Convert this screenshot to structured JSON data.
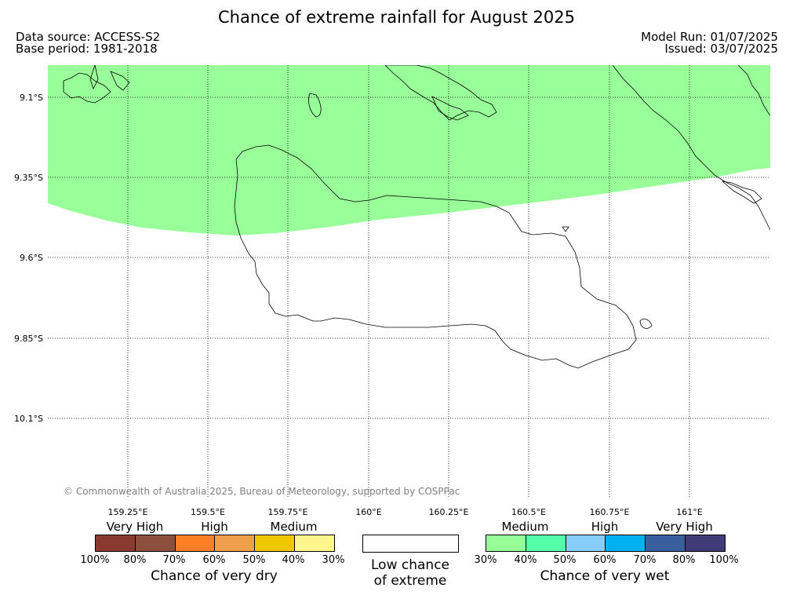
{
  "title": "Chance of extreme rainfall for August 2025",
  "meta": {
    "data_source": "Data source: ACCESS-S2",
    "base_period": "Base period: 1981-2018",
    "model_run": "Model Run: 01/07/2025",
    "issued": "Issued: 03/07/2025"
  },
  "map": {
    "lat_labels": [
      "9.1°S",
      "9.35°S",
      "9.6°S",
      "9.85°S",
      "10.1°S"
    ],
    "lon_labels": [
      "159.25°E",
      "159.5°E",
      "159.75°E",
      "160°E",
      "160.25°E",
      "160.5°E",
      "160.75°E",
      "161°E"
    ],
    "copyright": "© Commonwealth of Australia 2025, Bureau of Meteorology, supported by COSPPac",
    "shaded_category_color": "#99ff99"
  },
  "legend": {
    "dry": {
      "categories": [
        "Very High",
        "High",
        "Medium"
      ],
      "colors": [
        "#8b3a32",
        "#8b4f3c",
        "#ff7f27",
        "#f0a04b",
        "#f0c800",
        "#fff68f"
      ],
      "ticks": [
        "100%",
        "80%",
        "70%",
        "60%",
        "50%",
        "40%",
        "30%"
      ],
      "caption": "Chance of very dry"
    },
    "low": {
      "caption_line1": "Low chance",
      "caption_line2": "of extreme"
    },
    "wet": {
      "categories": [
        "Medium",
        "High",
        "Very High"
      ],
      "colors": [
        "#99ff99",
        "#55ffaa",
        "#87cefa",
        "#00b0f0",
        "#3a5f9f",
        "#403c78"
      ],
      "ticks": [
        "30%",
        "40%",
        "50%",
        "60%",
        "70%",
        "80%",
        "100%"
      ],
      "caption": "Chance of very wet"
    }
  }
}
